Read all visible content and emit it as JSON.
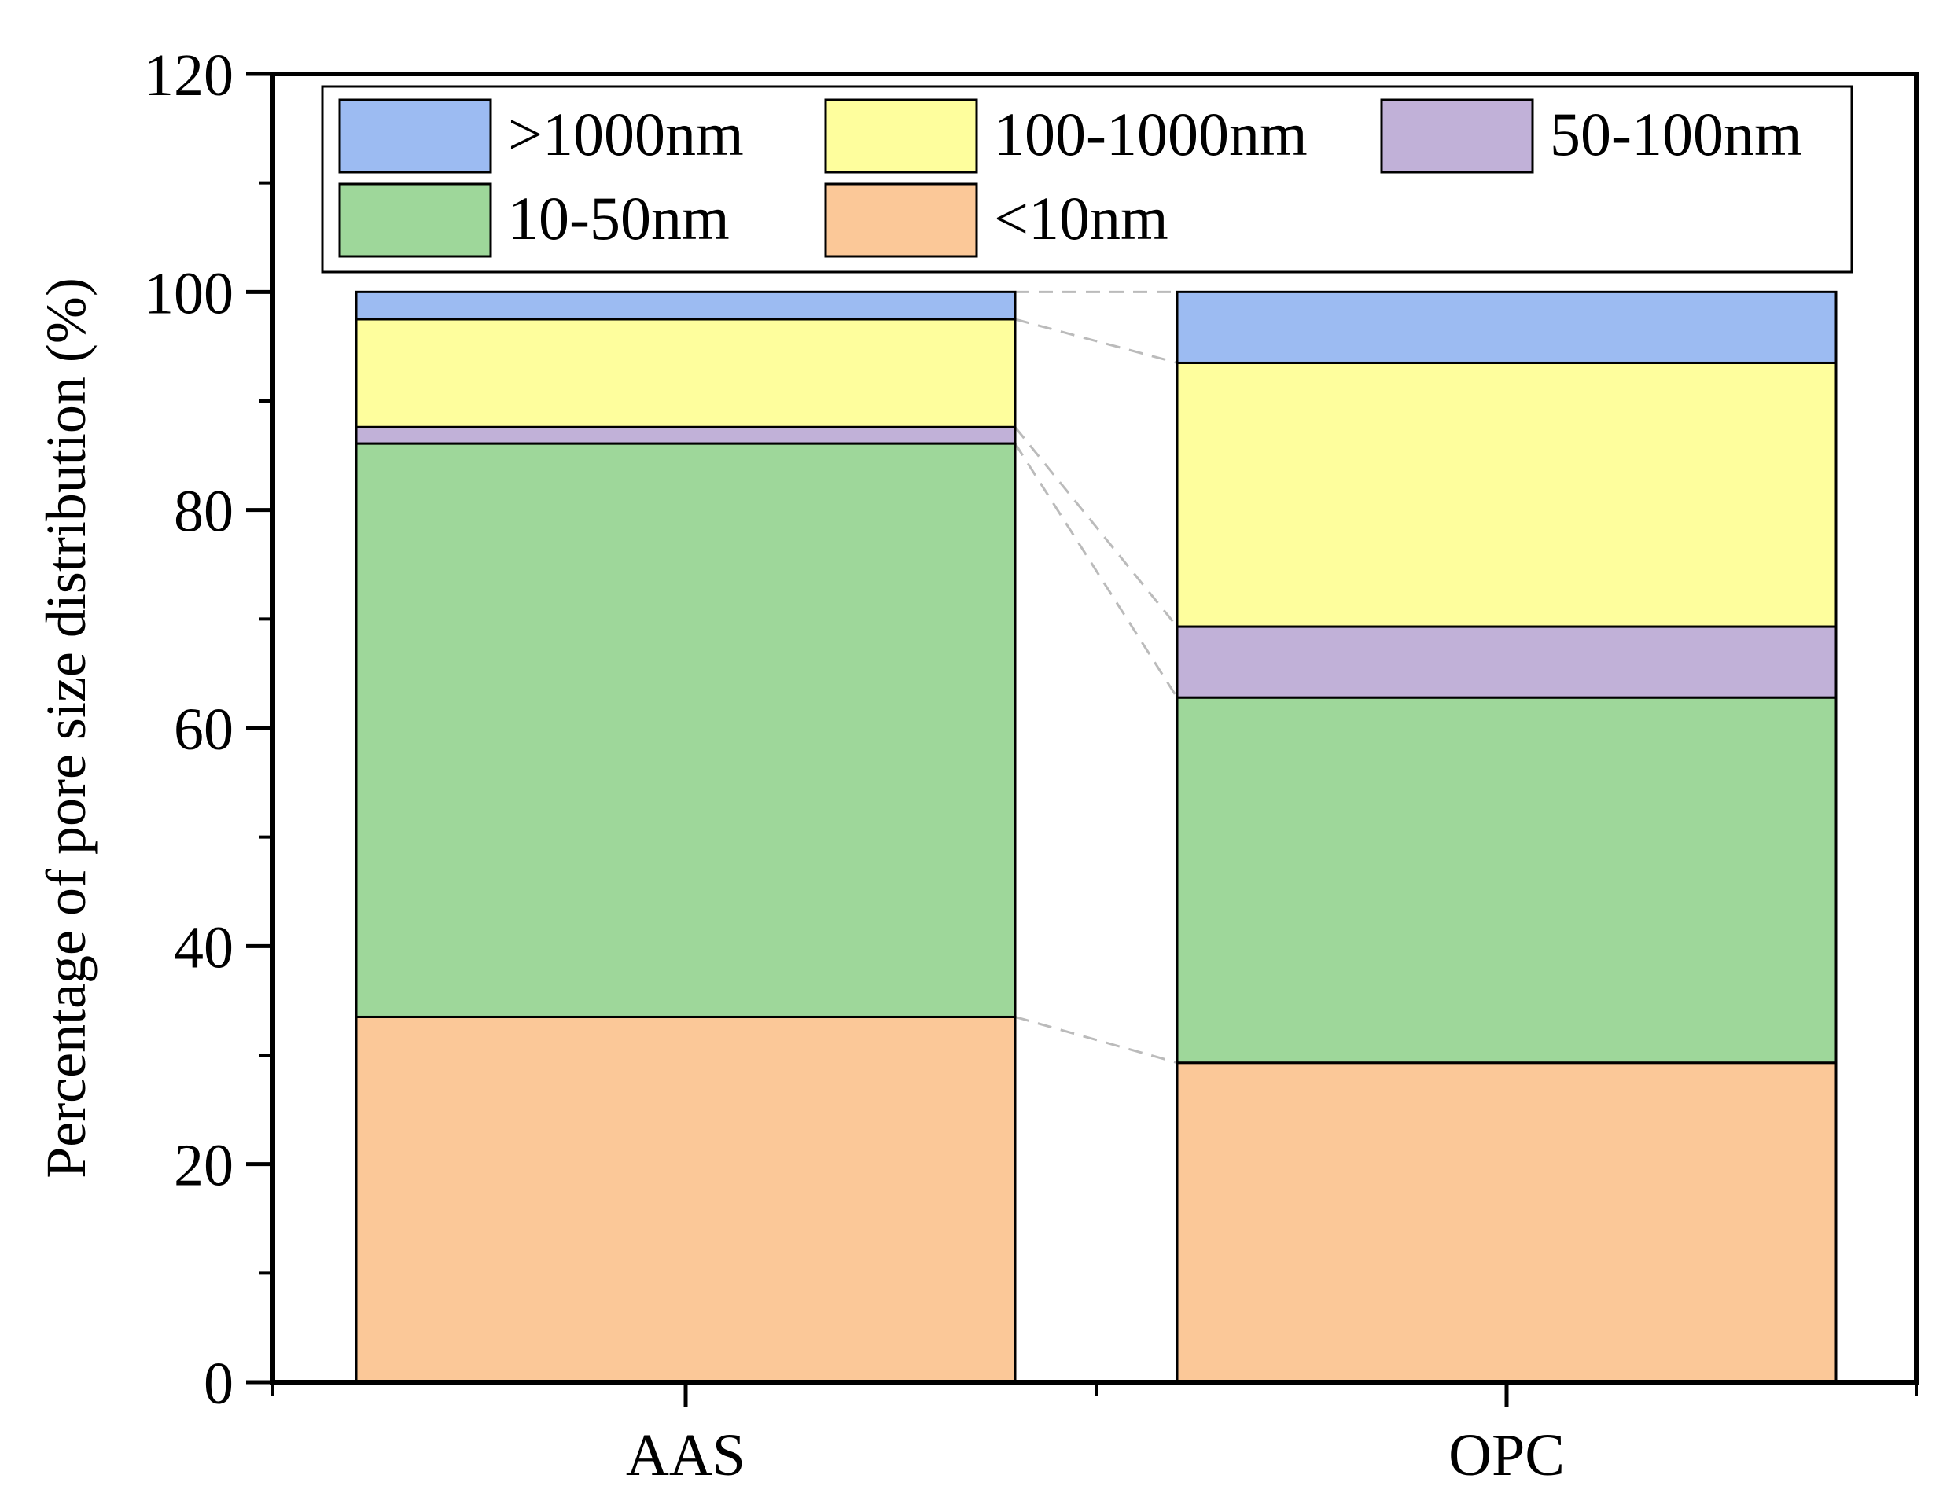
{
  "chart_data": {
    "type": "bar",
    "stacked": true,
    "title": "",
    "xlabel": "",
    "ylabel": "Percentage of pore size distribution (%)",
    "ylim": [
      0,
      120
    ],
    "y_ticks": [
      0,
      20,
      40,
      60,
      80,
      100,
      120
    ],
    "categories": [
      "AAS",
      "OPC"
    ],
    "series": [
      {
        "name": "<10nm",
        "color": "#FBC898",
        "values": [
          33.5,
          29.3
        ]
      },
      {
        "name": "10-50nm",
        "color": "#9ED79A",
        "values": [
          52.6,
          33.5
        ]
      },
      {
        "name": "50-100nm",
        "color": "#C1B1D8",
        "values": [
          1.5,
          6.5
        ]
      },
      {
        "name": "100-1000nm",
        "color": "#FEFE9D",
        "values": [
          9.9,
          24.2
        ]
      },
      {
        "name": ">1000nm",
        "color": "#9CBBF2",
        "values": [
          2.5,
          6.5
        ]
      }
    ],
    "legend": {
      "position": "top",
      "order": [
        ">1000nm",
        "100-1000nm",
        "50-100nm",
        "10-50nm",
        "<10nm"
      ]
    },
    "connector_color": "#BBBBBB"
  }
}
